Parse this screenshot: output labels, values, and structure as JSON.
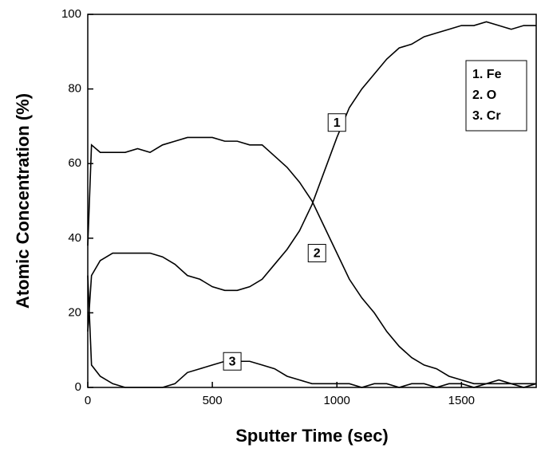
{
  "chart_data": {
    "type": "line",
    "xlabel": "Sputter Time (sec)",
    "ylabel": "Atomic Concentration (%)",
    "x": [
      0,
      15,
      50,
      100,
      150,
      200,
      250,
      300,
      350,
      400,
      450,
      500,
      550,
      600,
      650,
      700,
      750,
      800,
      850,
      900,
      950,
      1000,
      1050,
      1100,
      1150,
      1200,
      1250,
      1300,
      1350,
      1400,
      1450,
      1500,
      1550,
      1600,
      1650,
      1700,
      1750,
      1800
    ],
    "series": [
      {
        "name": "1. Fe",
        "color": "#000000",
        "values": [
          15,
          30,
          34,
          36,
          36,
          36,
          36,
          35,
          33,
          30,
          29,
          27,
          26,
          26,
          27,
          29,
          33,
          37,
          42,
          49,
          58,
          67,
          75,
          80,
          84,
          88,
          91,
          92,
          94,
          95,
          96,
          97,
          97,
          98,
          97,
          96,
          97,
          97
        ]
      },
      {
        "name": "2. O",
        "color": "#000000",
        "values": [
          38,
          65,
          63,
          63,
          63,
          64,
          63,
          65,
          66,
          67,
          67,
          67,
          66,
          66,
          65,
          65,
          62,
          59,
          55,
          50,
          43,
          36,
          29,
          24,
          20,
          15,
          11,
          8,
          6,
          5,
          3,
          2,
          1,
          1,
          2,
          1,
          1,
          1
        ]
      },
      {
        "name": "3. Cr",
        "color": "#000000",
        "values": [
          30,
          6,
          3,
          1,
          0,
          0,
          0,
          0,
          1,
          4,
          5,
          6,
          7,
          7,
          7,
          6,
          5,
          3,
          2,
          1,
          1,
          1,
          1,
          0,
          1,
          1,
          0,
          1,
          1,
          0,
          1,
          1,
          0,
          1,
          1,
          1,
          0,
          1
        ]
      }
    ],
    "annotations": [
      {
        "text": "1",
        "x": 1000,
        "y": 71
      },
      {
        "text": "2",
        "x": 920,
        "y": 36
      },
      {
        "text": "3",
        "x": 580,
        "y": 7
      }
    ],
    "xlim": [
      0,
      1800
    ],
    "ylim": [
      0,
      100
    ],
    "xticks": [
      0,
      500,
      1000,
      1500
    ],
    "yticks": [
      0,
      20,
      40,
      60,
      80,
      100
    ],
    "legend": "upper right"
  }
}
